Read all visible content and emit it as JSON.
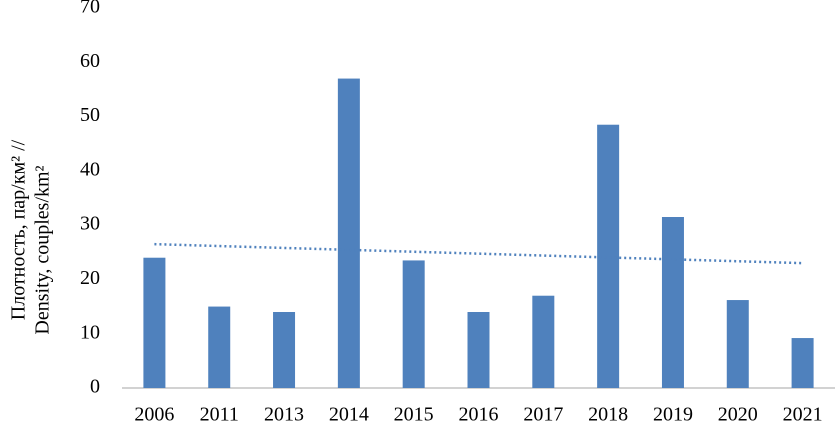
{
  "chart_data": {
    "type": "bar",
    "y_label_lines": [
      "Плотность, пар/км² //",
      "Density, couples/km²"
    ],
    "categories": [
      "2006",
      "2011",
      "2013",
      "2014",
      "2015",
      "2016",
      "2017",
      "2018",
      "2019",
      "2020",
      "2021"
    ],
    "values": [
      24,
      15,
      14,
      57,
      23.5,
      14,
      17,
      48.5,
      31.5,
      16.2,
      9.2
    ],
    "color": "#4f81bd",
    "ylim": [
      0,
      70
    ],
    "yticks": [
      0,
      10,
      20,
      30,
      40,
      50,
      60,
      70
    ],
    "grid": false,
    "trendline": {
      "start": 26.5,
      "end": 23,
      "color": "#4f81bd"
    }
  }
}
